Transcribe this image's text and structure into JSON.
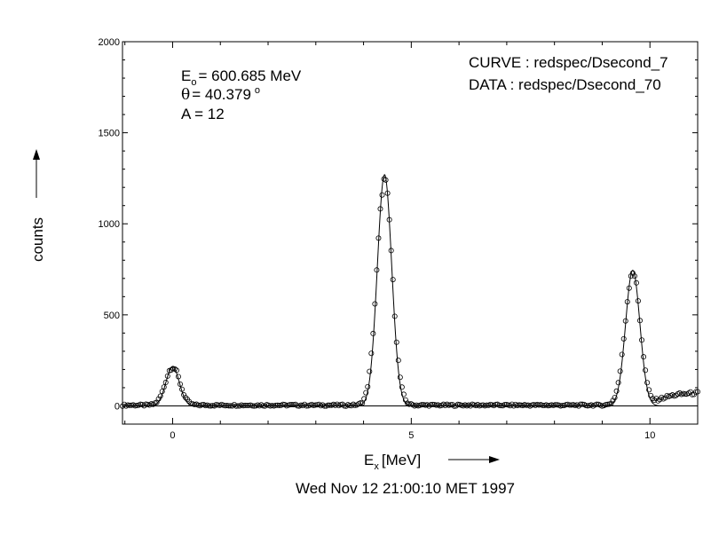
{
  "chart_data": {
    "type": "scatter",
    "xlabel": "E",
    "xlabel_sub": "x",
    "xlabel_unit": "[MeV]",
    "ylabel": "counts",
    "xlim": [
      -1.05,
      11.0
    ],
    "ylim": [
      -100,
      2000
    ],
    "x_ticks": [
      0,
      5,
      10
    ],
    "x_tick_labels": [
      "0",
      "5",
      "10"
    ],
    "y_ticks": [
      0,
      500,
      1000,
      1500,
      2000
    ],
    "y_tick_labels": [
      "0",
      "500",
      "1000",
      "1500",
      "2000"
    ],
    "grid": false,
    "annotations": {
      "energy_symbol": "E",
      "energy_sub": "o",
      "energy_text": "= 600.685 MeV",
      "theta_symbol": "θ",
      "theta_text": "= 40.379",
      "theta_unit": "o",
      "mass_text": "A = 12",
      "curve_label": "CURVE : redspec/Dsecond_7",
      "data_label": "DATA  : redspec/Dsecond_70"
    },
    "footer": "Wed Nov 12 21:00:10 MET 1997",
    "series": [
      {
        "name": "DATA",
        "style": "open-circles",
        "description": "measured spectrum points",
        "peaks": [
          {
            "x": 0.0,
            "height": 210,
            "sigma": 0.15
          },
          {
            "x": 4.44,
            "height": 1235,
            "sigma": 0.16
          },
          {
            "x": 9.64,
            "height": 735,
            "sigma": 0.16
          }
        ],
        "baseline": 4,
        "tail_start": 10.0,
        "tail_level": 70,
        "x_range": [
          -1.05,
          11.0
        ],
        "n_points": 320
      },
      {
        "name": "CURVE",
        "style": "line",
        "description": "fitted curve",
        "peaks": [
          {
            "x": 0.0,
            "height": 215,
            "sigma": 0.14
          },
          {
            "x": 4.44,
            "height": 1270,
            "sigma": 0.15
          },
          {
            "x": 9.64,
            "height": 745,
            "sigma": 0.15
          }
        ],
        "baseline": 0,
        "x_range": [
          -1.05,
          11.0
        ]
      }
    ]
  },
  "colors": {
    "background": "#ffffff",
    "ink": "#000000"
  }
}
